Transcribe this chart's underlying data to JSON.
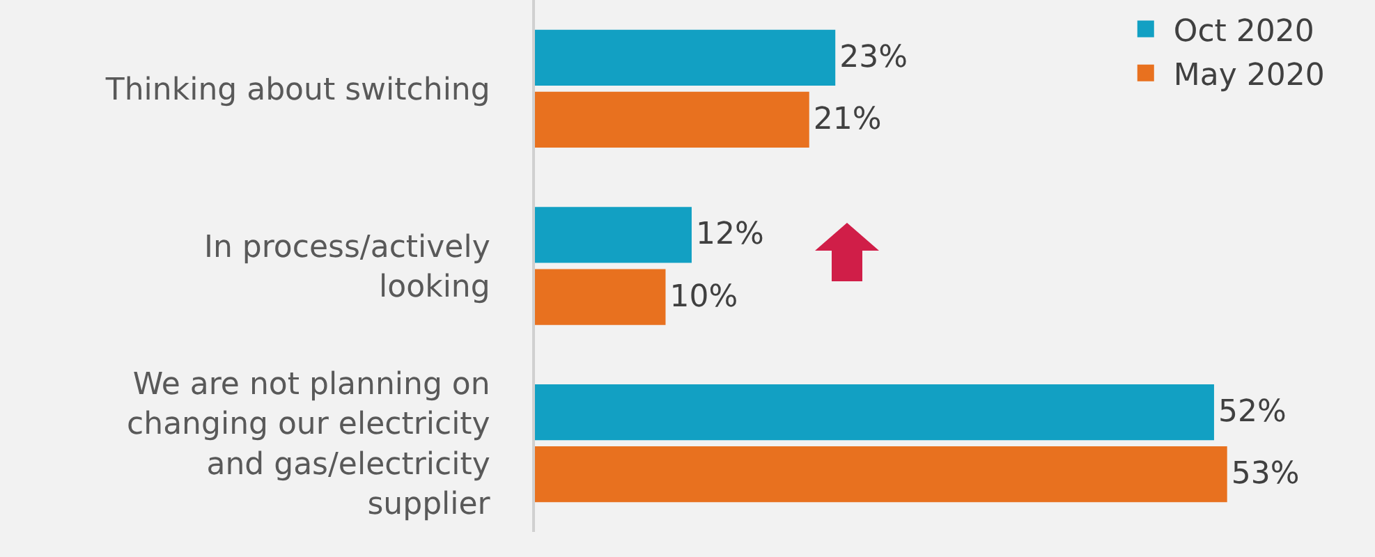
{
  "chart_data": {
    "type": "bar",
    "orientation": "horizontal",
    "categories": [
      "Thinking about switching",
      "In process/actively looking",
      "We are not planning on changing our electricity and gas/electricity supplier"
    ],
    "series": [
      {
        "name": "Oct 2020",
        "color": "#12a0c3",
        "values": [
          23,
          12,
          52
        ],
        "value_labels": [
          "23%",
          "12%",
          "52%"
        ]
      },
      {
        "name": "May 2020",
        "color": "#e8711f",
        "values": [
          21,
          10,
          53
        ],
        "value_labels": [
          "21%",
          "10%",
          "53%"
        ]
      }
    ],
    "tick_labels": "y",
    "grid": false,
    "legend": "top right"
  }
}
